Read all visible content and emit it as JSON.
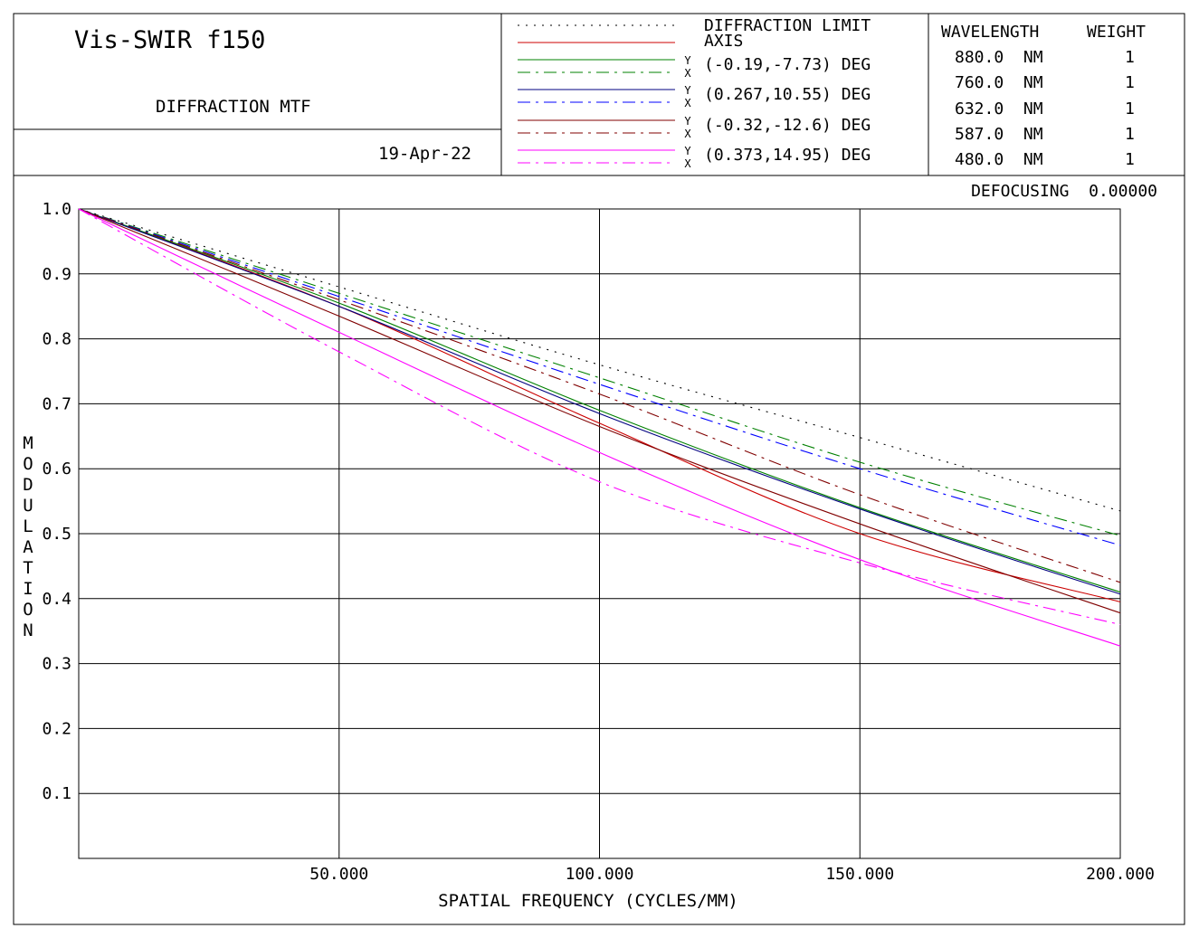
{
  "header": {
    "title": "Vis-SWIR f150",
    "subtitle": "DIFFRACTION MTF",
    "date": "19-Apr-22"
  },
  "legend": {
    "entries": [
      {
        "label": "DIFFRACTION LIMIT",
        "yx": false
      },
      {
        "label": "AXIS",
        "yx": false
      },
      {
        "label": "(-0.19,-7.73)  DEG",
        "yx": true
      },
      {
        "label": "(0.267,10.55)  DEG",
        "yx": true
      },
      {
        "label": "(-0.32,-12.6)  DEG",
        "yx": true
      },
      {
        "label": "(0.373,14.95)  DEG",
        "yx": true
      }
    ],
    "y_letter": "Y",
    "x_letter": "X"
  },
  "wavelengths": {
    "header_wavelength": "WAVELENGTH",
    "header_weight": "WEIGHT",
    "rows": [
      {
        "wavelength": "880.0  NM",
        "weight": "1"
      },
      {
        "wavelength": "760.0  NM",
        "weight": "1"
      },
      {
        "wavelength": "632.0  NM",
        "weight": "1"
      },
      {
        "wavelength": "587.0  NM",
        "weight": "1"
      },
      {
        "wavelength": "480.0  NM",
        "weight": "1"
      }
    ]
  },
  "defocusing": "DEFOCUSING  0.00000",
  "chart_data": {
    "type": "line",
    "xlabel": "SPATIAL FREQUENCY (CYCLES/MM)",
    "ylabel": "MODULATION",
    "xlim": [
      0,
      200
    ],
    "ylim": [
      0,
      1
    ],
    "x_ticks": [
      "50.000",
      "100.000",
      "150.000",
      "200.000"
    ],
    "x_tick_values": [
      50,
      100,
      150,
      200
    ],
    "y_ticks": [
      "0.1",
      "0.2",
      "0.3",
      "0.4",
      "0.5",
      "0.6",
      "0.7",
      "0.8",
      "0.9",
      "1.0"
    ],
    "y_tick_values": [
      0.1,
      0.2,
      0.3,
      0.4,
      0.5,
      0.6,
      0.7,
      0.8,
      0.9,
      1.0
    ],
    "grid": true,
    "series": [
      {
        "name": "DIFFRACTION LIMIT",
        "color": "#000000",
        "dash": "dotted",
        "x": [
          0,
          50,
          100,
          150,
          200
        ],
        "y": [
          1.0,
          0.88,
          0.76,
          0.648,
          0.535
        ]
      },
      {
        "name": "AXIS",
        "color": "#cc0000",
        "dash": "solid",
        "x": [
          0,
          50,
          100,
          150,
          200
        ],
        "y": [
          1.0,
          0.85,
          0.67,
          0.5,
          0.395
        ]
      },
      {
        "name": "(-0.19,-7.73) DEG Y",
        "color": "#008000",
        "dash": "solid",
        "x": [
          0,
          50,
          100,
          150,
          200
        ],
        "y": [
          1.0,
          0.855,
          0.69,
          0.54,
          0.41
        ]
      },
      {
        "name": "(-0.19,-7.73) DEG X",
        "color": "#008000",
        "dash": "dashdot",
        "x": [
          0,
          50,
          100,
          150,
          200
        ],
        "y": [
          1.0,
          0.87,
          0.74,
          0.61,
          0.497
        ]
      },
      {
        "name": "(0.267,10.55) DEG Y",
        "color": "#000080",
        "dash": "solid",
        "x": [
          0,
          50,
          100,
          150,
          200
        ],
        "y": [
          1.0,
          0.85,
          0.685,
          0.538,
          0.407
        ]
      },
      {
        "name": "(0.267,10.55) DEG X",
        "color": "#0000ff",
        "dash": "dashdot",
        "x": [
          0,
          50,
          100,
          150,
          200
        ],
        "y": [
          1.0,
          0.865,
          0.73,
          0.6,
          0.482
        ]
      },
      {
        "name": "(-0.32,-12.6) DEG Y",
        "color": "#800000",
        "dash": "solid",
        "x": [
          0,
          50,
          100,
          150,
          200
        ],
        "y": [
          1.0,
          0.835,
          0.665,
          0.515,
          0.378
        ]
      },
      {
        "name": "(-0.32,-12.6) DEG X",
        "color": "#800000",
        "dash": "dashdot",
        "x": [
          0,
          50,
          100,
          150,
          200
        ],
        "y": [
          1.0,
          0.86,
          0.715,
          0.56,
          0.425
        ]
      },
      {
        "name": "(0.373,14.95) DEG Y",
        "color": "#ff00ff",
        "dash": "solid",
        "x": [
          0,
          50,
          100,
          150,
          200
        ],
        "y": [
          1.0,
          0.81,
          0.625,
          0.46,
          0.327
        ]
      },
      {
        "name": "(0.373,14.95) DEG X",
        "color": "#ff00ff",
        "dash": "dashdot",
        "x": [
          0,
          50,
          100,
          150,
          200
        ],
        "y": [
          1.0,
          0.78,
          0.58,
          0.455,
          0.36
        ]
      }
    ]
  }
}
